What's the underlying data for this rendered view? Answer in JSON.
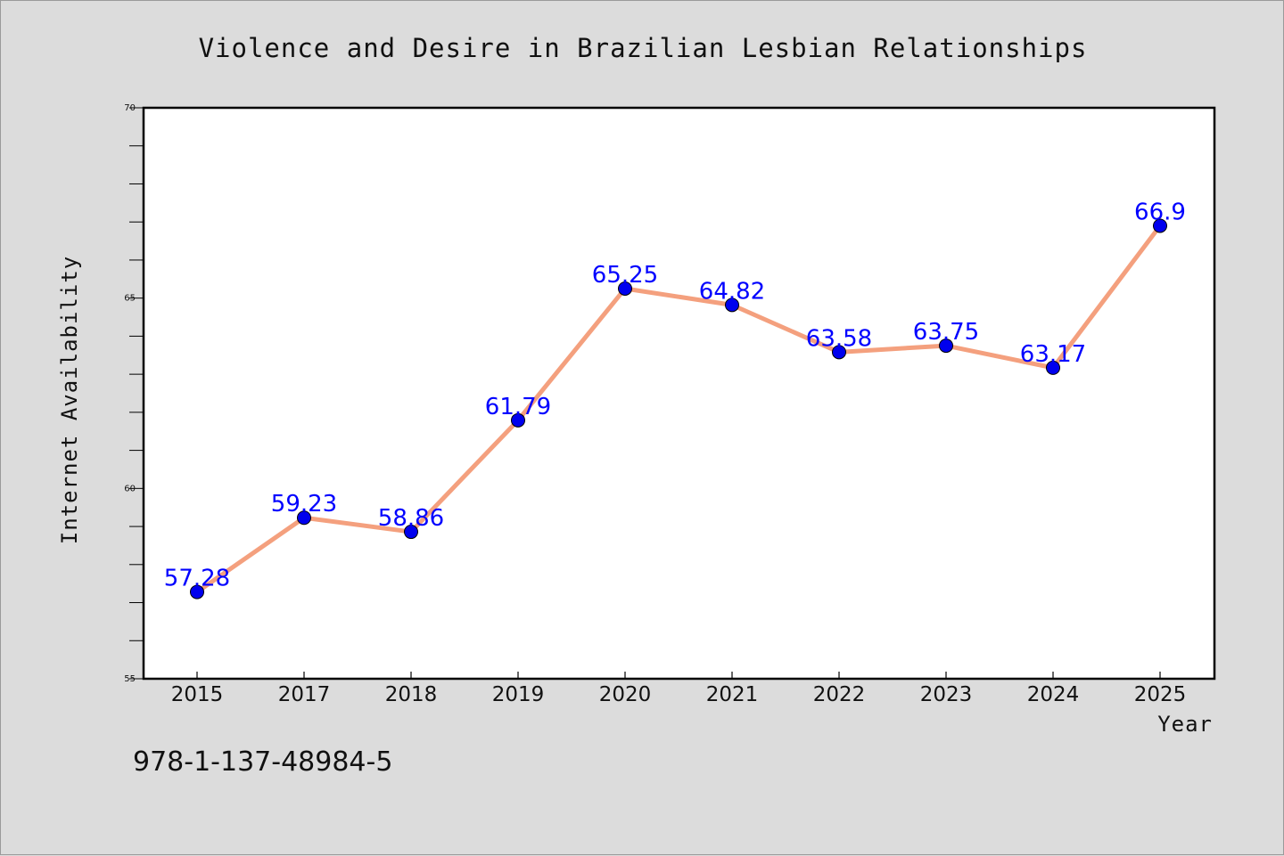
{
  "chart_data": {
    "type": "line",
    "title": "Violence and Desire in Brazilian Lesbian Relationships",
    "xlabel": "Year",
    "ylabel": "Internet Availability",
    "categories": [
      "2015",
      "2017",
      "2018",
      "2019",
      "2020",
      "2021",
      "2022",
      "2023",
      "2024",
      "2025"
    ],
    "values": [
      57.28,
      59.23,
      58.86,
      61.79,
      65.25,
      64.82,
      63.58,
      63.75,
      63.17,
      66.9
    ],
    "data_labels": [
      "57.28",
      "59.23",
      "58.86",
      "61.79",
      "65.25",
      "64.82",
      "63.58",
      "63.75",
      "63.17",
      "66.9"
    ],
    "ylim": [
      55,
      70
    ],
    "y_ticks": [
      "55",
      "60",
      "65",
      "70"
    ],
    "grid": false,
    "legend": "none",
    "colors": {
      "line": "#f4a07e",
      "marker": "#0000ee",
      "label": "#0000ff",
      "background": "#dcdcdc",
      "plot_area": "#ffffff"
    }
  },
  "footer_code": "978-1-137-48984-5"
}
